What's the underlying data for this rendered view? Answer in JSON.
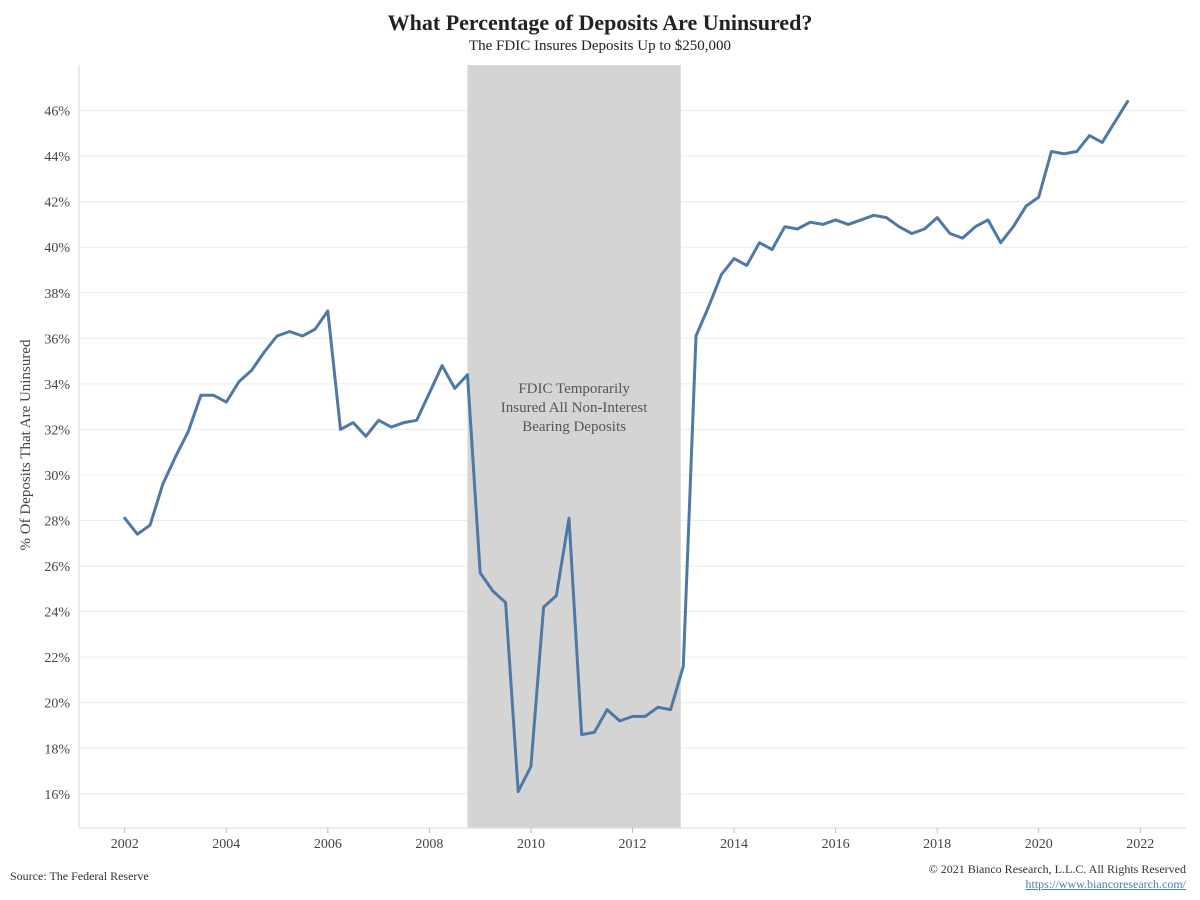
{
  "chart_data": {
    "type": "line",
    "title": "What Percentage of Deposits Are Uninsured?",
    "subtitle": "The FDIC Insures Deposits Up to $250,000",
    "ylabel": "% Of Deposits That Are Uninsured",
    "xlabel": "",
    "xlim": [
      2001.1,
      2022.9
    ],
    "ylim": [
      14.5,
      48.0
    ],
    "x_ticks": [
      2002,
      2004,
      2006,
      2008,
      2010,
      2012,
      2014,
      2016,
      2018,
      2020,
      2022
    ],
    "y_ticks": [
      16,
      18,
      20,
      22,
      24,
      26,
      28,
      30,
      32,
      34,
      36,
      38,
      40,
      42,
      44,
      46
    ],
    "y_tick_labels": [
      "16%",
      "18%",
      "20%",
      "22%",
      "24%",
      "26%",
      "28%",
      "30%",
      "32%",
      "34%",
      "36%",
      "38%",
      "40%",
      "42%",
      "44%",
      "46%"
    ],
    "grid": true,
    "line_color": "#4e79a7",
    "shading": {
      "x_start": 2008.75,
      "x_end": 2012.95,
      "color": "#d4d4d4",
      "label": [
        "FDIC Temporarily",
        "Insured All Non-Interest",
        "Bearing Deposits"
      ]
    },
    "series": [
      {
        "x": [
          2002.0,
          2002.25,
          2002.5,
          2002.75,
          2003.0,
          2003.25,
          2003.5,
          2003.75,
          2004.0,
          2004.25,
          2004.5,
          2004.75,
          2005.0,
          2005.25,
          2005.5,
          2005.75,
          2006.0,
          2006.25,
          2006.5,
          2006.75,
          2007.0,
          2007.25,
          2007.5,
          2007.75,
          2008.0,
          2008.25,
          2008.5,
          2008.75,
          2009.0,
          2009.25,
          2009.5,
          2009.75,
          2010.0,
          2010.25,
          2010.5,
          2010.75,
          2011.0,
          2011.25,
          2011.5,
          2011.75,
          2012.0,
          2012.25,
          2012.5,
          2012.75,
          2013.0,
          2013.25,
          2013.5,
          2013.75,
          2014.0,
          2014.25,
          2014.5,
          2014.75,
          2015.0,
          2015.25,
          2015.5,
          2015.75,
          2016.0,
          2016.25,
          2016.5,
          2016.75,
          2017.0,
          2017.25,
          2017.5,
          2017.75,
          2018.0,
          2018.25,
          2018.5,
          2018.75,
          2019.0,
          2019.25,
          2019.5,
          2019.75,
          2020.0,
          2020.25,
          2020.5,
          2020.75,
          2021.0,
          2021.25,
          2021.5,
          2021.75
        ],
        "values": [
          28.1,
          27.4,
          27.8,
          29.6,
          30.8,
          31.9,
          33.5,
          33.5,
          33.2,
          34.1,
          34.6,
          35.4,
          36.1,
          36.3,
          36.1,
          36.4,
          37.2,
          32.0,
          32.3,
          31.7,
          32.4,
          32.1,
          32.3,
          32.4,
          33.6,
          34.8,
          33.8,
          34.4,
          25.7,
          24.9,
          24.4,
          16.1,
          17.2,
          24.2,
          24.7,
          28.1,
          18.6,
          18.7,
          19.7,
          19.2,
          19.4,
          19.4,
          19.8,
          19.7,
          21.6,
          36.1,
          37.4,
          38.8,
          39.5,
          39.2,
          40.2,
          39.9,
          40.9,
          40.8,
          41.1,
          41.0,
          41.2,
          41.0,
          41.2,
          41.4,
          41.3,
          40.9,
          40.6,
          40.8,
          41.3,
          40.6,
          40.4,
          40.9,
          41.2,
          40.2,
          40.9,
          41.8,
          42.2,
          44.2,
          44.1,
          44.2,
          44.9,
          44.6,
          45.5,
          46.4
        ]
      }
    ]
  },
  "footer": {
    "source": "Source: The Federal Reserve",
    "copyright": "© 2021 Bianco Research, L.L.C. All Rights Reserved",
    "website": "https://www.biancoresearch.com/"
  }
}
